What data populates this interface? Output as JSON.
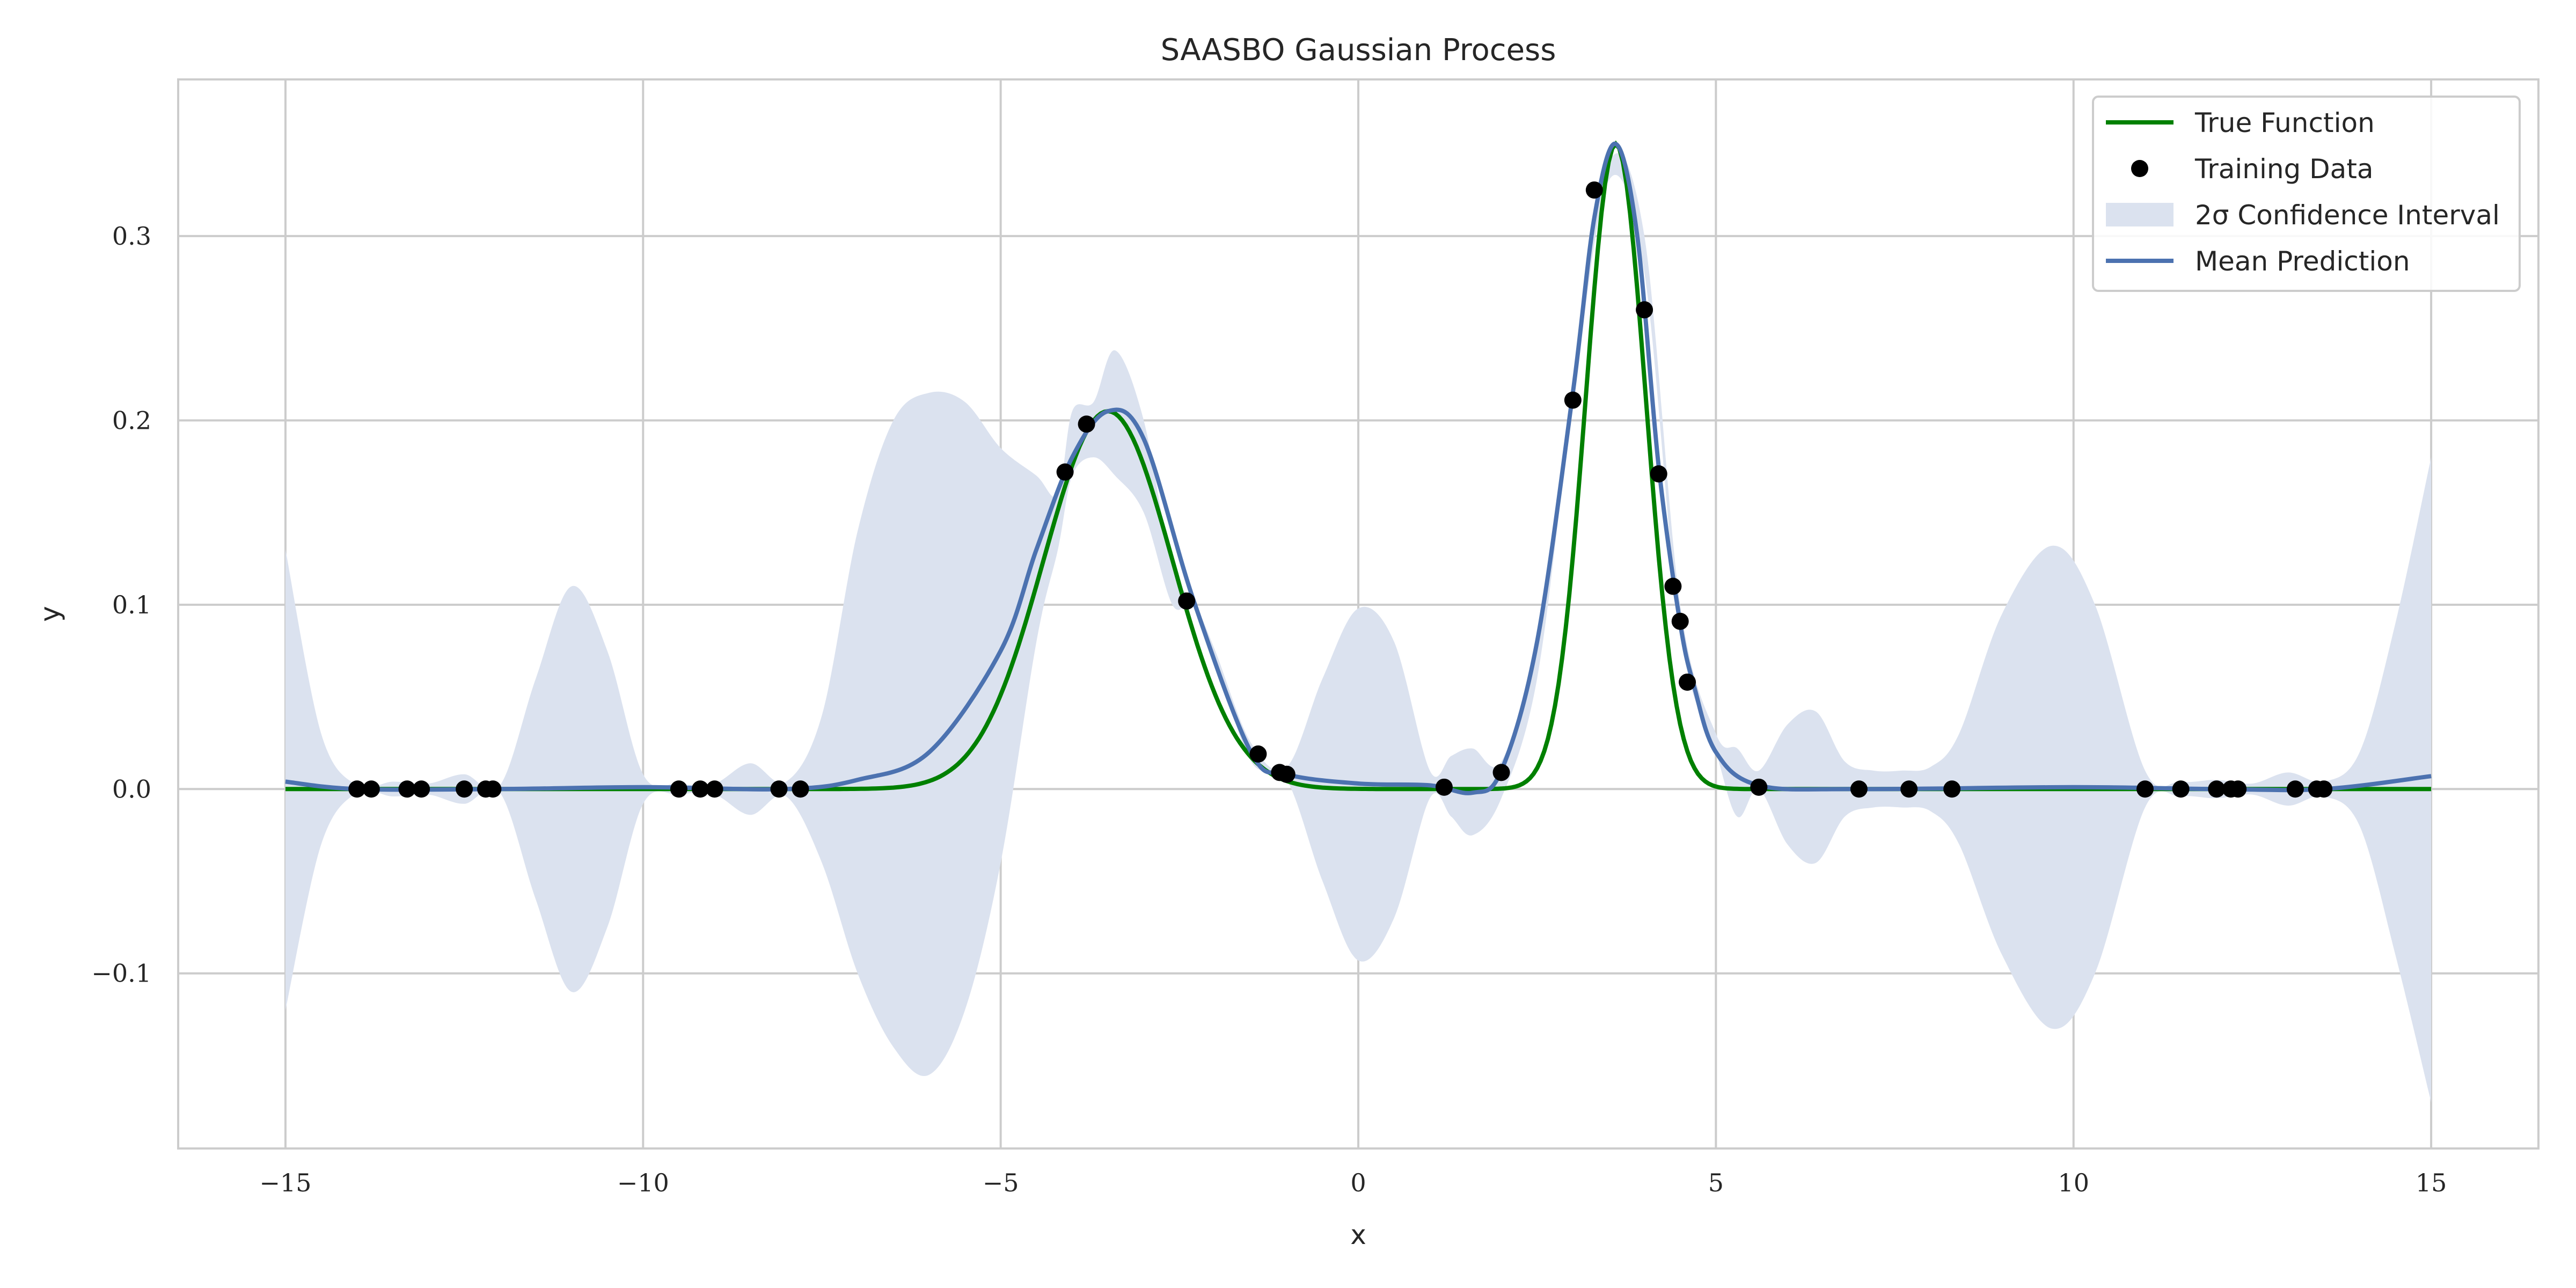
{
  "chart_data": {
    "type": "line",
    "title": "SAASBO Gaussian Process",
    "xlabel": "x",
    "ylabel": "y",
    "xlim": [
      -16.5,
      16.5
    ],
    "ylim": [
      -0.195,
      0.385
    ],
    "xticks": [
      -15,
      -10,
      -5,
      0,
      5,
      10,
      15
    ],
    "xtick_labels": [
      "−15",
      "−10",
      "−5",
      "0",
      "5",
      "10",
      "15"
    ],
    "yticks": [
      -0.1,
      0.0,
      0.1,
      0.2,
      0.3
    ],
    "ytick_labels": [
      "−0.1",
      "0.0",
      "0.1",
      "0.2",
      "0.3"
    ],
    "grid": true,
    "legend_position": "top-right",
    "legend": [
      {
        "label": "True Function",
        "kind": "line",
        "color": "#008000"
      },
      {
        "label": "Training Data",
        "kind": "marker",
        "color": "#000000"
      },
      {
        "label": "2σ Confidence Interval",
        "kind": "patch",
        "color": "#4c72b0"
      },
      {
        "label": "Mean Prediction",
        "kind": "line",
        "color": "#4c72b0"
      }
    ],
    "colors": {
      "true_function": "#008000",
      "mean": "#4c72b0",
      "band": "#dbe2ef",
      "points": "#000000",
      "grid": "#cccccc"
    },
    "true_function": {
      "description_terms": [
        {
          "amp": 0.205,
          "center": -3.5,
          "width": 0.9
        },
        {
          "amp": 0.35,
          "center": 3.6,
          "width": 0.42
        }
      ]
    },
    "mean_prediction": {
      "x": [
        -15,
        -14,
        -12,
        -10,
        -8,
        -7,
        -6,
        -5,
        -4.5,
        -4,
        -3.5,
        -3,
        -2.3,
        -1.5,
        -1,
        0,
        1,
        1.6,
        2,
        2.5,
        3,
        3.3,
        3.6,
        3.9,
        4.2,
        4.5,
        4.7,
        5,
        5.6,
        7,
        10,
        12,
        13.5,
        15
      ],
      "y": [
        0.004,
        0.0,
        0.0,
        0.001,
        0.0,
        0.005,
        0.02,
        0.075,
        0.13,
        0.18,
        0.205,
        0.19,
        0.102,
        0.02,
        0.008,
        0.003,
        0.002,
        -0.002,
        0.01,
        0.08,
        0.215,
        0.31,
        0.35,
        0.3,
        0.175,
        0.09,
        0.055,
        0.02,
        0.002,
        0.0,
        0.001,
        0.0,
        0.0,
        0.007
      ]
    },
    "confidence_band": {
      "x": [
        -15,
        -14.5,
        -14,
        -13.5,
        -13,
        -12.5,
        -12,
        -11.5,
        -11,
        -10.5,
        -10,
        -9.5,
        -9,
        -8.5,
        -8,
        -7.5,
        -7,
        -6.5,
        -6,
        -5.5,
        -5,
        -4.5,
        -4.2,
        -4,
        -3.7,
        -3.4,
        -3,
        -2.6,
        -2.3,
        -2,
        -1.5,
        -1,
        -0.5,
        0,
        0.5,
        1,
        1.3,
        1.6,
        2,
        2.5,
        3,
        3.5,
        4,
        4.5,
        5,
        5.3,
        5.6,
        6,
        6.4,
        6.8,
        7.2,
        7.6,
        8,
        8.4,
        9,
        9.7,
        10.3,
        11,
        11.5,
        12,
        12.5,
        13,
        13.5,
        14,
        14.5,
        15
      ],
      "upper": [
        0.13,
        0.03,
        0.002,
        0.004,
        0.003,
        0.008,
        0.002,
        0.06,
        0.11,
        0.075,
        0.008,
        0.003,
        0.003,
        0.014,
        0.004,
        0.04,
        0.14,
        0.2,
        0.215,
        0.21,
        0.185,
        0.17,
        0.16,
        0.205,
        0.21,
        0.238,
        0.2,
        0.12,
        0.102,
        0.075,
        0.025,
        0.012,
        0.06,
        0.098,
        0.08,
        0.01,
        0.018,
        0.022,
        0.015,
        0.08,
        0.22,
        0.34,
        0.3,
        0.1,
        0.03,
        0.022,
        0.01,
        0.035,
        0.042,
        0.015,
        0.01,
        0.01,
        0.012,
        0.03,
        0.095,
        0.132,
        0.1,
        0.01,
        0.004,
        0.005,
        0.003,
        0.009,
        0.004,
        0.02,
        0.09,
        0.18
      ],
      "lower": [
        -0.12,
        -0.03,
        -0.002,
        -0.004,
        -0.003,
        -0.008,
        -0.002,
        -0.06,
        -0.11,
        -0.075,
        -0.008,
        -0.003,
        -0.003,
        -0.014,
        -0.004,
        -0.04,
        -0.1,
        -0.14,
        -0.155,
        -0.12,
        -0.04,
        0.08,
        0.13,
        0.17,
        0.18,
        0.17,
        0.15,
        0.1,
        0.1,
        0.07,
        0.015,
        0.005,
        -0.05,
        -0.093,
        -0.07,
        -0.005,
        -0.015,
        -0.025,
        -0.005,
        0.06,
        0.21,
        0.33,
        0.28,
        0.085,
        0.02,
        -0.015,
        0.0,
        -0.03,
        -0.04,
        -0.015,
        -0.01,
        -0.01,
        -0.012,
        -0.03,
        -0.09,
        -0.13,
        -0.1,
        -0.01,
        -0.004,
        -0.005,
        -0.003,
        -0.009,
        -0.004,
        -0.02,
        -0.09,
        -0.17
      ]
    },
    "training_data": {
      "x": [
        -14.0,
        -13.8,
        -13.3,
        -13.1,
        -12.5,
        -12.2,
        -12.1,
        -9.5,
        -9.2,
        -9.0,
        -8.1,
        -7.8,
        -3.8,
        -4.1,
        -2.4,
        -1.4,
        -1.1,
        -1.0,
        1.2,
        2.0,
        3.0,
        3.3,
        4.0,
        4.2,
        4.4,
        4.5,
        4.6,
        5.6,
        7.0,
        7.7,
        8.3,
        11.0,
        11.5,
        12.0,
        12.2,
        12.3,
        13.1,
        13.4,
        13.5
      ],
      "y": [
        0.0,
        0.0,
        0.0,
        0.0,
        0.0,
        0.0,
        0.0,
        0.0,
        0.0,
        0.0,
        0.0,
        0.0,
        0.198,
        0.172,
        0.102,
        0.019,
        0.009,
        0.008,
        0.001,
        0.009,
        0.211,
        0.325,
        0.26,
        0.171,
        0.11,
        0.091,
        0.058,
        0.001,
        0.0,
        0.0,
        0.0,
        0.0,
        0.0,
        0.0,
        0.0,
        0.0,
        0.0,
        0.0,
        0.0
      ]
    }
  }
}
